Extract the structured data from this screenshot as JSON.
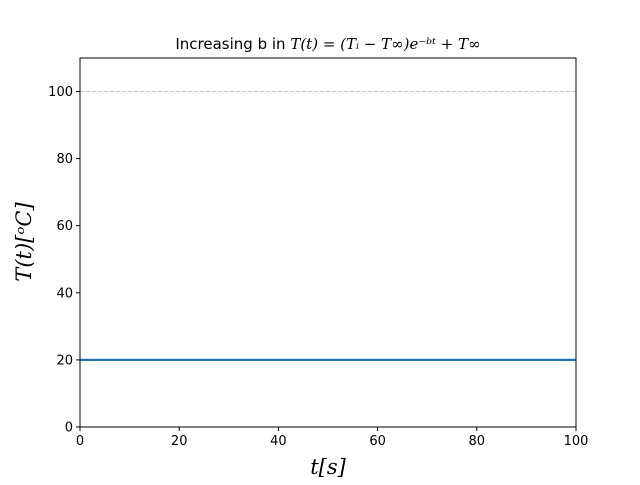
{
  "chart_data": {
    "type": "line",
    "title": {
      "prefix": "Increasing b in ",
      "formula": "T(t) = (Tᵢ − T∞)e⁻ᵇᵗ + T∞"
    },
    "xlabel": "t[s]",
    "ylabel": "T(t)[ᵒC]",
    "xlim": [
      0,
      100
    ],
    "ylim": [
      0,
      110
    ],
    "xticks": [
      0,
      20,
      40,
      60,
      80,
      100
    ],
    "yticks": [
      0,
      20,
      40,
      60,
      80,
      100
    ],
    "grid": false,
    "legend": "none",
    "reference_lines": [
      {
        "orientation": "horizontal",
        "y": 100,
        "style": "dashed",
        "color": "#c8c8c8"
      }
    ],
    "series": [
      {
        "color": "#1f77b4",
        "x": [
          0,
          20,
          40,
          60,
          80,
          100
        ],
        "y": [
          20,
          20,
          20,
          20,
          20,
          20
        ]
      }
    ]
  }
}
